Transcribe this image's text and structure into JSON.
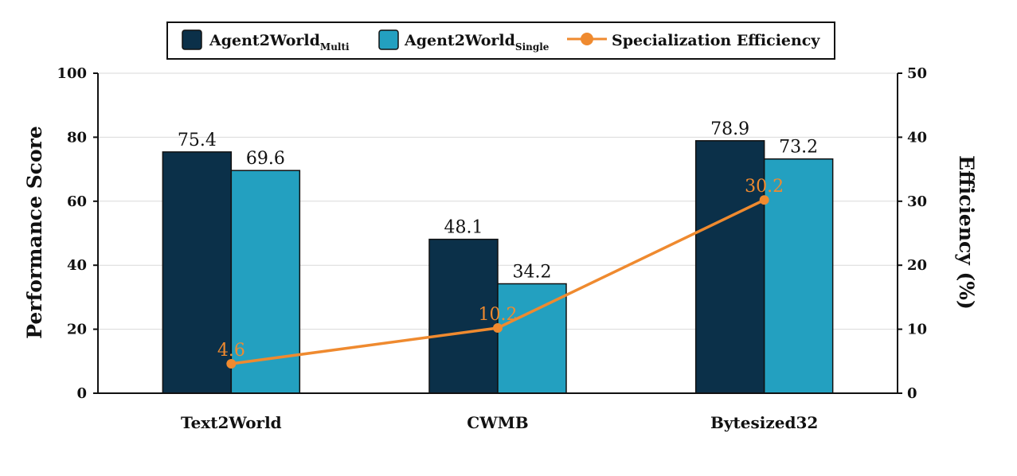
{
  "chart_data": {
    "type": "bar",
    "categories": [
      "Text2World",
      "CWMB",
      "Bytesized32"
    ],
    "series": [
      {
        "name": "Agent2World",
        "subscript": "Multi",
        "kind": "bar",
        "axis": "left",
        "color": "#0b3049",
        "values": [
          75.4,
          48.1,
          78.9
        ]
      },
      {
        "name": "Agent2World",
        "subscript": "Single",
        "kind": "bar",
        "axis": "left",
        "color": "#23a0c0",
        "values": [
          69.6,
          34.2,
          73.2
        ]
      },
      {
        "name": "Specialization Efficiency",
        "kind": "line",
        "axis": "right",
        "color": "#ef8a2f",
        "values": [
          4.6,
          10.2,
          30.2
        ]
      }
    ],
    "ylabel": "Performance Score",
    "y2label": "Efficiency (%)",
    "ylim": [
      0,
      100
    ],
    "y2lim": [
      0,
      50
    ],
    "yticks": [
      0,
      20,
      40,
      60,
      80,
      100
    ],
    "y2ticks": [
      0,
      10,
      20,
      30,
      40,
      50
    ],
    "grid": "horizontal",
    "legend": "top-center"
  }
}
